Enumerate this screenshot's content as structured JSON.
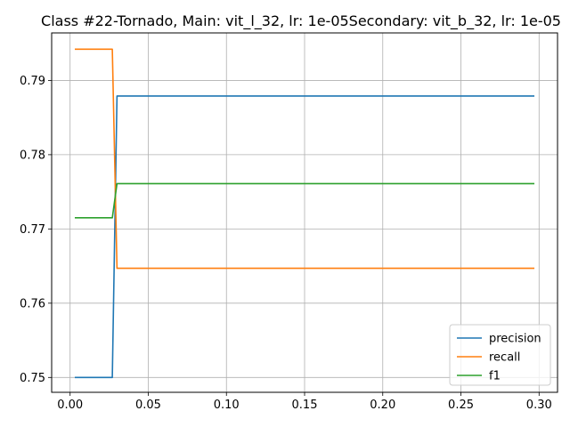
{
  "chart_data": {
    "type": "line",
    "title": "Class #22-Tornado, Main: vit_l_32, lr: 1e-05Secondary: vit_b_32, lr: 1e-05",
    "xlabel": "",
    "ylabel": "",
    "xlim": [
      -0.0118,
      0.3118
    ],
    "ylim": [
      0.748,
      0.7964
    ],
    "x_ticks": [
      0.0,
      0.05,
      0.1,
      0.15,
      0.2,
      0.25,
      0.3
    ],
    "x_tick_labels": [
      "0.00",
      "0.05",
      "0.10",
      "0.15",
      "0.20",
      "0.25",
      "0.30"
    ],
    "y_ticks": [
      0.75,
      0.76,
      0.77,
      0.78,
      0.79
    ],
    "y_tick_labels": [
      "0.75",
      "0.76",
      "0.77",
      "0.78",
      "0.79"
    ],
    "grid": true,
    "legend_position": "lower-right",
    "series": [
      {
        "name": "precision",
        "color": "#1f77b4",
        "x": [
          0.003,
          0.027,
          0.03,
          0.297
        ],
        "y": [
          0.75,
          0.75,
          0.7879,
          0.7879
        ]
      },
      {
        "name": "recall",
        "color": "#ff7f0e",
        "x": [
          0.003,
          0.027,
          0.03,
          0.297
        ],
        "y": [
          0.7942,
          0.7942,
          0.7647,
          0.7647
        ]
      },
      {
        "name": "f1",
        "color": "#2ca02c",
        "x": [
          0.003,
          0.027,
          0.03,
          0.297
        ],
        "y": [
          0.7715,
          0.7715,
          0.7761,
          0.7761
        ]
      }
    ]
  }
}
